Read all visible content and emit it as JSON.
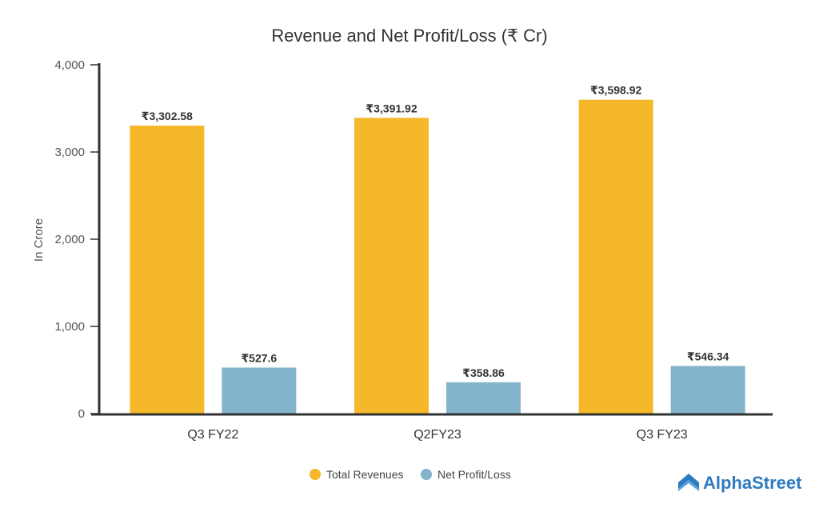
{
  "chart_data": {
    "type": "bar",
    "title": "Revenue and Net Profit/Loss (₹ Cr)",
    "xlabel": "",
    "ylabel": "In Crore",
    "ylim": [
      0,
      4000
    ],
    "yticks": [
      0,
      1000,
      2000,
      3000,
      4000
    ],
    "ytick_labels": [
      "0",
      "1,000",
      "2,000",
      "3,000",
      "4,000"
    ],
    "categories": [
      "Q3 FY22",
      "Q2FY23",
      "Q3 FY23"
    ],
    "series": [
      {
        "name": "Total Revenues",
        "color": "#f5b82a",
        "values": [
          3302.58,
          3391.92,
          3598.92
        ],
        "labels": [
          "₹3,302.58",
          "₹3,391.92",
          "₹3,598.92"
        ]
      },
      {
        "name": "Net Profit/Loss",
        "color": "#84b4cb",
        "values": [
          527.6,
          358.86,
          546.34
        ],
        "labels": [
          "₹527.6",
          "₹358.86",
          "₹546.34"
        ]
      }
    ],
    "legend_position": "bottom-center",
    "grid": false
  },
  "branding": {
    "logo_text": "AlphaStreet",
    "logo_color": "#2f7bbf"
  }
}
